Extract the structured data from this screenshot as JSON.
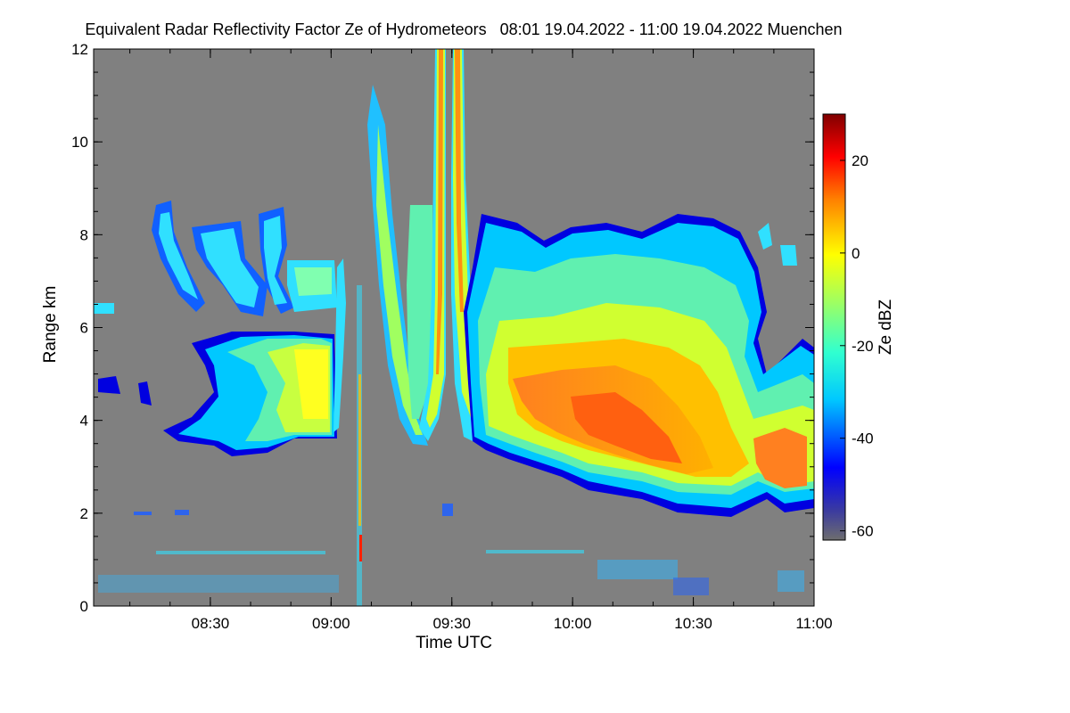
{
  "chart_data": {
    "type": "heatmap",
    "title": "Equivalent Radar Reflectivity Factor Ze of Hydrometeors   08:01 19.04.2022 - 11:00 19.04.2022 Muenchen",
    "xlabel": "Time UTC",
    "ylabel": "Range km",
    "x_range": [
      "08:01",
      "11:00"
    ],
    "x_ticks": [
      "08:30",
      "09:00",
      "09:30",
      "10:00",
      "10:30",
      "11:00"
    ],
    "y_range": [
      0,
      12
    ],
    "y_ticks": [
      0,
      2,
      4,
      6,
      8,
      10,
      12
    ],
    "background_color": "#808080",
    "colorbar": {
      "label": "Ze dBZ",
      "range": [
        -62,
        30
      ],
      "ticks": [
        -60,
        -40,
        -20,
        0,
        20
      ],
      "colormap": "jet"
    },
    "features": [
      {
        "name": "low cloud layer",
        "time": [
          "08:12",
          "09:02"
        ],
        "range_km": [
          3.5,
          5.5
        ],
        "ze_dbz": [
          -40,
          -5
        ]
      },
      {
        "name": "upper cloud streaks",
        "time": [
          "08:16",
          "08:50"
        ],
        "range_km": [
          6.3,
          8.7
        ],
        "ze_dbz": [
          -35,
          -15
        ]
      },
      {
        "name": "rain shaft left",
        "time": [
          "09:05",
          "09:20"
        ],
        "range_km": [
          3.5,
          12
        ],
        "ze_dbz": [
          -25,
          5
        ]
      },
      {
        "name": "rain shaft right",
        "time": [
          "09:26",
          "09:34"
        ],
        "range_km": [
          3.8,
          12
        ],
        "ze_dbz": [
          -20,
          15
        ]
      },
      {
        "name": "main cloud system",
        "time": [
          "09:35",
          "11:00"
        ],
        "range_km": [
          1.8,
          8.6
        ],
        "ze_dbz": [
          -45,
          10
        ]
      }
    ]
  }
}
